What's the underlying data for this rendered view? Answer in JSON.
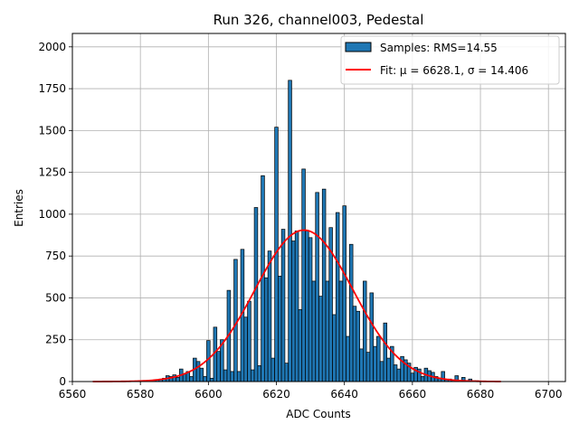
{
  "chart_data": {
    "type": "bar",
    "title": "Run 326, channel003, Pedestal",
    "xlabel": "ADC Counts",
    "ylabel": "Entries",
    "xlim": [
      6560,
      6705
    ],
    "ylim": [
      0,
      2080
    ],
    "xticks": [
      6560,
      6580,
      6600,
      6620,
      6640,
      6660,
      6680,
      6700
    ],
    "yticks": [
      0,
      250,
      500,
      750,
      1000,
      1250,
      1500,
      1750,
      2000
    ],
    "grid": true,
    "legend_position": "top-right",
    "colors": {
      "bars": "#1f77b4",
      "bar_edge": "#000000",
      "fit": "#ff0000"
    },
    "histogram": {
      "name": "Samples: RMS=14.55",
      "bin_width": 1,
      "bins": [
        {
          "x": 6583,
          "y": 5
        },
        {
          "x": 6584,
          "y": 8
        },
        {
          "x": 6585,
          "y": 12
        },
        {
          "x": 6586,
          "y": 15
        },
        {
          "x": 6587,
          "y": 20
        },
        {
          "x": 6588,
          "y": 35
        },
        {
          "x": 6589,
          "y": 30
        },
        {
          "x": 6590,
          "y": 40
        },
        {
          "x": 6591,
          "y": 25
        },
        {
          "x": 6592,
          "y": 75
        },
        {
          "x": 6593,
          "y": 45
        },
        {
          "x": 6594,
          "y": 60
        },
        {
          "x": 6595,
          "y": 30
        },
        {
          "x": 6596,
          "y": 140
        },
        {
          "x": 6597,
          "y": 120
        },
        {
          "x": 6598,
          "y": 80
        },
        {
          "x": 6599,
          "y": 30
        },
        {
          "x": 6600,
          "y": 245
        },
        {
          "x": 6601,
          "y": 20
        },
        {
          "x": 6602,
          "y": 325
        },
        {
          "x": 6603,
          "y": 180
        },
        {
          "x": 6604,
          "y": 250
        },
        {
          "x": 6605,
          "y": 70
        },
        {
          "x": 6606,
          "y": 545
        },
        {
          "x": 6607,
          "y": 60
        },
        {
          "x": 6608,
          "y": 730
        },
        {
          "x": 6609,
          "y": 60
        },
        {
          "x": 6610,
          "y": 790
        },
        {
          "x": 6611,
          "y": 385
        },
        {
          "x": 6612,
          "y": 480
        },
        {
          "x": 6613,
          "y": 70
        },
        {
          "x": 6614,
          "y": 1040
        },
        {
          "x": 6615,
          "y": 95
        },
        {
          "x": 6616,
          "y": 1230
        },
        {
          "x": 6617,
          "y": 620
        },
        {
          "x": 6618,
          "y": 780
        },
        {
          "x": 6619,
          "y": 140
        },
        {
          "x": 6620,
          "y": 1520
        },
        {
          "x": 6621,
          "y": 630
        },
        {
          "x": 6622,
          "y": 910
        },
        {
          "x": 6623,
          "y": 110
        },
        {
          "x": 6624,
          "y": 1800
        },
        {
          "x": 6625,
          "y": 840
        },
        {
          "x": 6626,
          "y": 900
        },
        {
          "x": 6627,
          "y": 430
        },
        {
          "x": 6628,
          "y": 1270
        },
        {
          "x": 6629,
          "y": 900
        },
        {
          "x": 6630,
          "y": 860
        },
        {
          "x": 6631,
          "y": 600
        },
        {
          "x": 6632,
          "y": 1130
        },
        {
          "x": 6633,
          "y": 510
        },
        {
          "x": 6634,
          "y": 1150
        },
        {
          "x": 6635,
          "y": 600
        },
        {
          "x": 6636,
          "y": 920
        },
        {
          "x": 6637,
          "y": 400
        },
        {
          "x": 6638,
          "y": 1010
        },
        {
          "x": 6639,
          "y": 600
        },
        {
          "x": 6640,
          "y": 1050
        },
        {
          "x": 6641,
          "y": 270
        },
        {
          "x": 6642,
          "y": 820
        },
        {
          "x": 6643,
          "y": 450
        },
        {
          "x": 6644,
          "y": 420
        },
        {
          "x": 6645,
          "y": 195
        },
        {
          "x": 6646,
          "y": 600
        },
        {
          "x": 6647,
          "y": 175
        },
        {
          "x": 6648,
          "y": 530
        },
        {
          "x": 6649,
          "y": 210
        },
        {
          "x": 6650,
          "y": 270
        },
        {
          "x": 6651,
          "y": 120
        },
        {
          "x": 6652,
          "y": 350
        },
        {
          "x": 6653,
          "y": 140
        },
        {
          "x": 6654,
          "y": 210
        },
        {
          "x": 6655,
          "y": 100
        },
        {
          "x": 6656,
          "y": 75
        },
        {
          "x": 6657,
          "y": 150
        },
        {
          "x": 6658,
          "y": 130
        },
        {
          "x": 6659,
          "y": 110
        },
        {
          "x": 6660,
          "y": 50
        },
        {
          "x": 6661,
          "y": 85
        },
        {
          "x": 6662,
          "y": 75
        },
        {
          "x": 6663,
          "y": 30
        },
        {
          "x": 6664,
          "y": 80
        },
        {
          "x": 6665,
          "y": 65
        },
        {
          "x": 6666,
          "y": 55
        },
        {
          "x": 6667,
          "y": 30
        },
        {
          "x": 6668,
          "y": 20
        },
        {
          "x": 6669,
          "y": 60
        },
        {
          "x": 6670,
          "y": 10
        },
        {
          "x": 6671,
          "y": 15
        },
        {
          "x": 6672,
          "y": 8
        },
        {
          "x": 6673,
          "y": 35
        },
        {
          "x": 6674,
          "y": 5
        },
        {
          "x": 6675,
          "y": 25
        },
        {
          "x": 6676,
          "y": 5
        },
        {
          "x": 6677,
          "y": 15
        },
        {
          "x": 6678,
          "y": 5
        },
        {
          "x": 6679,
          "y": 5
        },
        {
          "x": 6680,
          "y": 3
        },
        {
          "x": 6681,
          "y": 3
        }
      ]
    },
    "fit": {
      "name": "Fit: μ = 6628.1, σ = 14.406",
      "mu": 6628.1,
      "sigma": 14.406,
      "amplitude": 905,
      "x_range": [
        6566,
        6686
      ]
    }
  }
}
